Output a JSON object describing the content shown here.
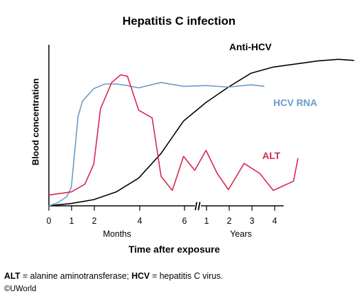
{
  "chart_data": {
    "type": "line",
    "title": "Hepatitis C infection",
    "xlabel": "Time after exposure",
    "ylabel": "Blood concentration",
    "x_ticks": [
      "0",
      "1",
      "2",
      "4",
      "6",
      "1",
      "2",
      "3",
      "4"
    ],
    "x_unit_labels": [
      "Months",
      "Years"
    ],
    "y_range": [
      0,
      100
    ],
    "grid": false,
    "legend": "inline labels at line ends",
    "series": [
      {
        "name": "Anti-HCV",
        "color": "#000000",
        "points": [
          [
            0,
            0
          ],
          [
            0.3,
            0.5
          ],
          [
            1,
            1.5
          ],
          [
            2,
            4
          ],
          [
            3,
            9
          ],
          [
            4,
            18
          ],
          [
            5,
            34
          ],
          [
            6,
            55
          ],
          [
            7,
            67
          ],
          [
            8,
            77
          ],
          [
            9,
            86
          ],
          [
            10,
            90
          ],
          [
            11,
            92
          ],
          [
            12,
            94
          ],
          [
            12.9,
            95
          ],
          [
            13.6,
            94.3
          ]
        ]
      },
      {
        "name": "HCV RNA",
        "color": "#6b99cb",
        "points": [
          [
            0,
            0
          ],
          [
            0.4,
            2
          ],
          [
            0.8,
            6
          ],
          [
            1,
            12
          ],
          [
            1.3,
            58
          ],
          [
            1.5,
            68
          ],
          [
            2,
            76
          ],
          [
            2.5,
            79
          ],
          [
            3,
            79
          ],
          [
            3.5,
            78
          ],
          [
            4,
            76.5
          ],
          [
            5,
            80
          ],
          [
            6,
            77.5
          ],
          [
            7,
            78
          ],
          [
            8,
            77
          ],
          [
            9,
            78.5
          ],
          [
            9.6,
            77.5
          ]
        ]
      },
      {
        "name": "ALT",
        "color": "#d6264f",
        "points": [
          [
            0,
            7
          ],
          [
            0.5,
            8
          ],
          [
            1,
            9
          ],
          [
            1.6,
            14
          ],
          [
            2,
            27
          ],
          [
            2.3,
            63
          ],
          [
            2.8,
            80
          ],
          [
            3.2,
            85
          ],
          [
            3.5,
            84
          ],
          [
            4,
            62
          ],
          [
            4.6,
            57
          ],
          [
            5,
            19
          ],
          [
            5.5,
            10
          ],
          [
            6,
            32
          ],
          [
            6.5,
            23
          ],
          [
            7,
            36
          ],
          [
            7.5,
            21
          ],
          [
            8,
            10.5
          ],
          [
            8.7,
            27.5
          ],
          [
            9.4,
            21
          ],
          [
            10,
            10
          ],
          [
            10.9,
            16
          ],
          [
            11.1,
            31
          ]
        ]
      }
    ],
    "axis_break": "//",
    "source_time_range_months": [
      0,
      6
    ],
    "source_time_range_years": [
      1,
      4
    ]
  },
  "footnote": {
    "abbr1": "ALT",
    "text1": " = alanine aminotransferase; ",
    "abbr2": "HCV",
    "text2": " = hepatitis C virus."
  },
  "copyright": "©UWorld"
}
